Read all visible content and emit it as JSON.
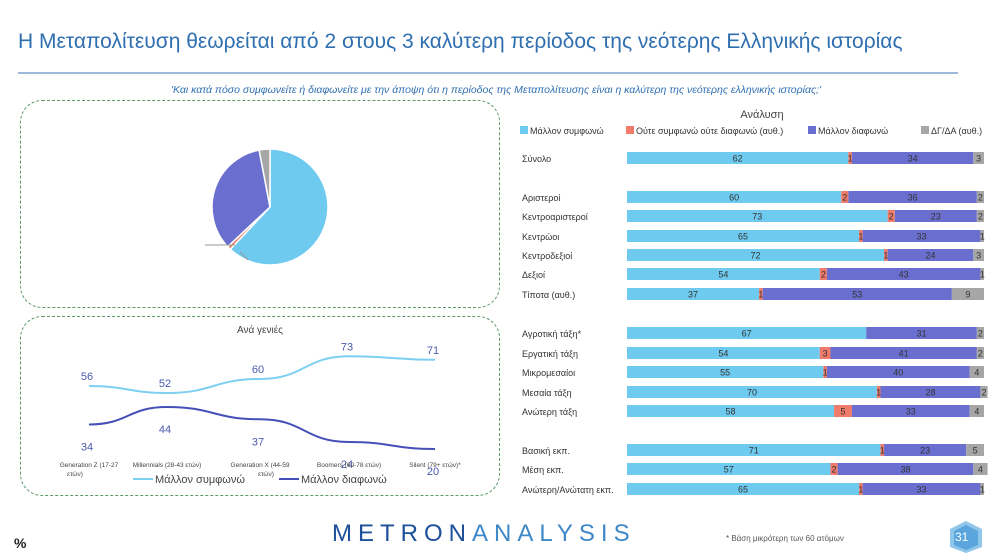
{
  "title": "Η Μεταπολίτευση θεωρείται από 2 στους 3 καλύτερη περίοδος της νεότερης Ελληνικής ιστορίας",
  "question": "'Και κατά πόσο συμφωνείτε ή διαφωνείτε με την άποψη ότι η περίοδος της Μεταπολίτευσης είναι η καλύτερη της νεότερης ελληνικής ιστορίας;'",
  "footer": {
    "percent_sign": "%",
    "logo_left": "METRON",
    "logo_right": "ANALYSIS",
    "footnote": "*  Βάση μικρότερη των 60 ατόμων",
    "page_number": "31"
  },
  "colors": {
    "agree": "#6fcaf0",
    "neutral": "#f07b6a",
    "disagree": "#6a6fcf",
    "dk": "#a6a6a6",
    "line_agree": "#7dd0f0",
    "line_disagree": "#4450b8",
    "title": "#2f6fb0"
  },
  "chart_data": [
    {
      "type": "pie",
      "labels": [
        "Μάλλον συμφωνώ",
        "Ούτε συμφωνώ ούτε διαφωνώ (αυθ.)",
        "Μάλλον διαφωνώ",
        "ΔΓ/ΔΑ (αυθ.)"
      ],
      "values": [
        62,
        1,
        34,
        3
      ]
    },
    {
      "type": "line",
      "title": "Ανά γενιές",
      "categories": [
        "Generation Z (17-27 ετών)",
        "Millennials (28-43 ετών)",
        "Generation X (44-59 ετών)",
        "Boomers (60-78 ετών)",
        "Silent (79+ ετών)*"
      ],
      "series": [
        {
          "name": "Μάλλον συμφωνώ",
          "values": [
            56,
            52,
            60,
            73,
            71
          ]
        },
        {
          "name": "Μάλλον διαφωνώ",
          "values": [
            34,
            44,
            37,
            24,
            20
          ]
        }
      ]
    },
    {
      "type": "bar",
      "stacked": true,
      "orientation": "horizontal",
      "title": "Ανάλυση",
      "legend": [
        "Μάλλον συμφωνώ",
        "Ούτε συμφωνώ ούτε διαφωνώ (αυθ.)",
        "Μάλλον διαφωνώ",
        "ΔΓ/ΔΑ (αυθ.)"
      ],
      "rows": [
        {
          "label": "Σύνολο",
          "values": [
            62,
            1,
            34,
            3
          ],
          "group": 0
        },
        {
          "label": "Αριστεροί",
          "values": [
            60,
            2,
            36,
            2
          ],
          "group": 1
        },
        {
          "label": "Κεντροαριστεροί",
          "values": [
            73,
            2,
            23,
            2
          ],
          "group": 1
        },
        {
          "label": "Κεντρώοι",
          "values": [
            65,
            1,
            33,
            1
          ],
          "group": 1
        },
        {
          "label": "Κεντροδεξιοί",
          "values": [
            72,
            1,
            24,
            3
          ],
          "group": 1
        },
        {
          "label": "Δεξιοί",
          "values": [
            54,
            2,
            43,
            1
          ],
          "group": 1
        },
        {
          "label": "Τίποτα (αυθ.)",
          "values": [
            37,
            1,
            53,
            9
          ],
          "group": 1
        },
        {
          "label": "Αγροτική τάξη*",
          "values": [
            67,
            0,
            31,
            2
          ],
          "group": 2
        },
        {
          "label": "Εργατική τάξη",
          "values": [
            54,
            3,
            41,
            2
          ],
          "group": 2
        },
        {
          "label": "Μικρομεσαίοι",
          "values": [
            55,
            1,
            40,
            4
          ],
          "group": 2
        },
        {
          "label": "Μεσαία τάξη",
          "values": [
            70,
            1,
            28,
            2
          ],
          "group": 2
        },
        {
          "label": "Ανώτερη τάξη",
          "values": [
            58,
            5,
            33,
            4
          ],
          "group": 2
        },
        {
          "label": "Βασική εκπ.",
          "values": [
            71,
            1,
            23,
            5
          ],
          "group": 3
        },
        {
          "label": "Μέση εκπ.",
          "values": [
            57,
            2,
            38,
            4
          ],
          "group": 3
        },
        {
          "label": "Ανώτερη/Ανώτατη εκπ.",
          "values": [
            65,
            1,
            33,
            1
          ],
          "group": 3
        }
      ]
    }
  ]
}
